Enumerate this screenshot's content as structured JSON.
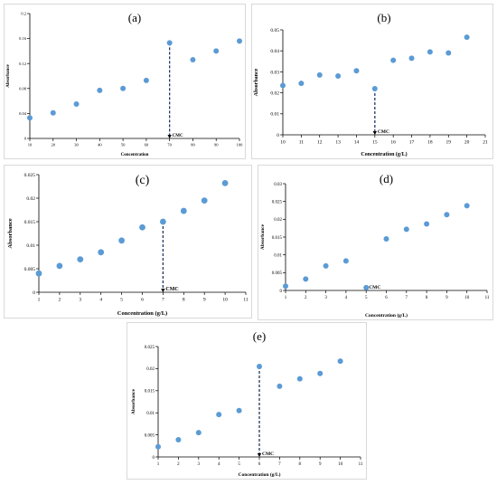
{
  "chart_data": [
    {
      "type": "scatter",
      "title": "(a)",
      "xlabel": "Concentration",
      "ylabel": "Absorbance",
      "xlim": [
        10,
        100
      ],
      "ylim": [
        0,
        0.2
      ],
      "xticks": [
        10,
        20,
        30,
        40,
        50,
        60,
        70,
        80,
        90,
        100
      ],
      "xtick_labels": [
        "10",
        "20",
        "30",
        "40",
        "50",
        "60",
        "70",
        "80",
        "90",
        "100"
      ],
      "yticks": [
        0,
        0.04,
        0.08,
        0.12,
        0.16,
        0.2
      ],
      "ytick_labels": [
        "0",
        "0.04",
        "0.08",
        "0.12",
        "0.16",
        "0.2"
      ],
      "x": [
        10,
        20,
        30,
        40,
        50,
        60,
        70,
        80,
        90,
        100
      ],
      "y": [
        0.033,
        0.041,
        0.055,
        0.077,
        0.08,
        0.093,
        0.153,
        0.126,
        0.14,
        0.156
      ],
      "cmc": {
        "x": 70,
        "label": "CMC"
      },
      "marker_color": "#5b9bd5",
      "cmc_line_color": "#1f3864"
    },
    {
      "type": "scatter",
      "title": "(b)",
      "xlabel": "Concentration (g/L)",
      "ylabel": "Absorbance",
      "xlim": [
        10,
        21
      ],
      "ylim": [
        0,
        0.05
      ],
      "xticks": [
        10,
        11,
        12,
        13,
        14,
        15,
        16,
        17,
        18,
        19,
        20,
        21
      ],
      "xtick_labels": [
        "10",
        "11",
        "12",
        "13",
        "14",
        "15",
        "16",
        "17",
        "18",
        "19",
        "20",
        "21"
      ],
      "yticks": [
        0,
        0.01,
        0.02,
        0.03,
        0.04,
        0.05
      ],
      "ytick_labels": [
        "0",
        "0.01",
        "0.02",
        "0.03",
        "0.04",
        "0.05"
      ],
      "x": [
        10,
        11,
        12,
        13,
        14,
        15,
        16,
        17,
        18,
        19,
        20
      ],
      "y": [
        0.0235,
        0.0245,
        0.0285,
        0.028,
        0.0305,
        0.022,
        0.0355,
        0.0365,
        0.0395,
        0.039,
        0.0465
      ],
      "cmc": {
        "x": 15,
        "label": "CMC"
      },
      "marker_color": "#5b9bd5",
      "cmc_line_color": "#1f3864"
    },
    {
      "type": "scatter",
      "title": "(c)",
      "xlabel": "Concentration (g/L)",
      "ylabel": "Absorbance",
      "xlim": [
        1,
        11
      ],
      "ylim": [
        0,
        0.025
      ],
      "xticks": [
        1,
        2,
        3,
        4,
        5,
        6,
        7,
        8,
        9,
        10,
        11
      ],
      "xtick_labels": [
        "1",
        "2",
        "3",
        "4",
        "5",
        "6",
        "7",
        "8",
        "9",
        "10",
        "11"
      ],
      "yticks": [
        0,
        0.005,
        0.01,
        0.015,
        0.02,
        0.025
      ],
      "ytick_labels": [
        "0",
        "0.005",
        "0.01",
        "0.015",
        "0.02",
        "0.025"
      ],
      "x": [
        1,
        2,
        3,
        4,
        5,
        6,
        7,
        8,
        9,
        10
      ],
      "y": [
        0.004,
        0.0056,
        0.007,
        0.0085,
        0.011,
        0.0138,
        0.015,
        0.0173,
        0.0195,
        0.0232
      ],
      "cmc": {
        "x": 7,
        "label": "CMC"
      },
      "marker_color": "#5b9bd5",
      "cmc_line_color": "#1f3864"
    },
    {
      "type": "scatter",
      "title": "(d)",
      "xlabel": "Concentration (g/L)",
      "ylabel": "Absorbance",
      "xlim": [
        1,
        11
      ],
      "ylim": [
        0,
        0.03
      ],
      "xticks": [
        1,
        2,
        3,
        4,
        5,
        6,
        7,
        8,
        9,
        10,
        11
      ],
      "xtick_labels": [
        "1",
        "2",
        "3",
        "4",
        "5",
        "6",
        "7",
        "8",
        "9",
        "10",
        "11"
      ],
      "yticks": [
        0,
        0.005,
        0.01,
        0.015,
        0.02,
        0.025,
        0.03
      ],
      "ytick_labels": [
        "0",
        "0.005",
        "0.01",
        "0.015",
        "0.02",
        "0.025",
        "0.03"
      ],
      "x": [
        1,
        2,
        3,
        4,
        5,
        6,
        7,
        8,
        9,
        10
      ],
      "y": [
        0.0012,
        0.0032,
        0.0069,
        0.0083,
        0.0008,
        0.0145,
        0.0172,
        0.0187,
        0.0213,
        0.0238
      ],
      "cmc": {
        "x": 5,
        "label": "CMC"
      },
      "marker_color": "#5b9bd5",
      "cmc_line_color": "#1f3864"
    },
    {
      "type": "scatter",
      "title": "(e)",
      "xlabel": "Concentration (g/L)",
      "ylabel": "Absorbance",
      "xlim": [
        1,
        11
      ],
      "ylim": [
        0,
        0.025
      ],
      "xticks": [
        1,
        2,
        3,
        4,
        5,
        6,
        7,
        8,
        9,
        10,
        11
      ],
      "xtick_labels": [
        "1",
        "2",
        "3",
        "4",
        "5",
        "6",
        "7",
        "8",
        "9",
        "10",
        "11"
      ],
      "yticks": [
        0,
        0.005,
        0.01,
        0.015,
        0.02,
        0.025
      ],
      "ytick_labels": [
        "0",
        "0.005",
        "0.01",
        "0.015",
        "0.02",
        "0.025"
      ],
      "x": [
        1,
        2,
        3,
        4,
        5,
        6,
        7,
        8,
        9,
        10
      ],
      "y": [
        0.0023,
        0.0039,
        0.0055,
        0.0096,
        0.0105,
        0.0205,
        0.016,
        0.0177,
        0.0189,
        0.0217
      ],
      "cmc": {
        "x": 6,
        "label": "CMC"
      },
      "marker_color": "#5b9bd5",
      "cmc_line_color": "#1f3864"
    }
  ]
}
